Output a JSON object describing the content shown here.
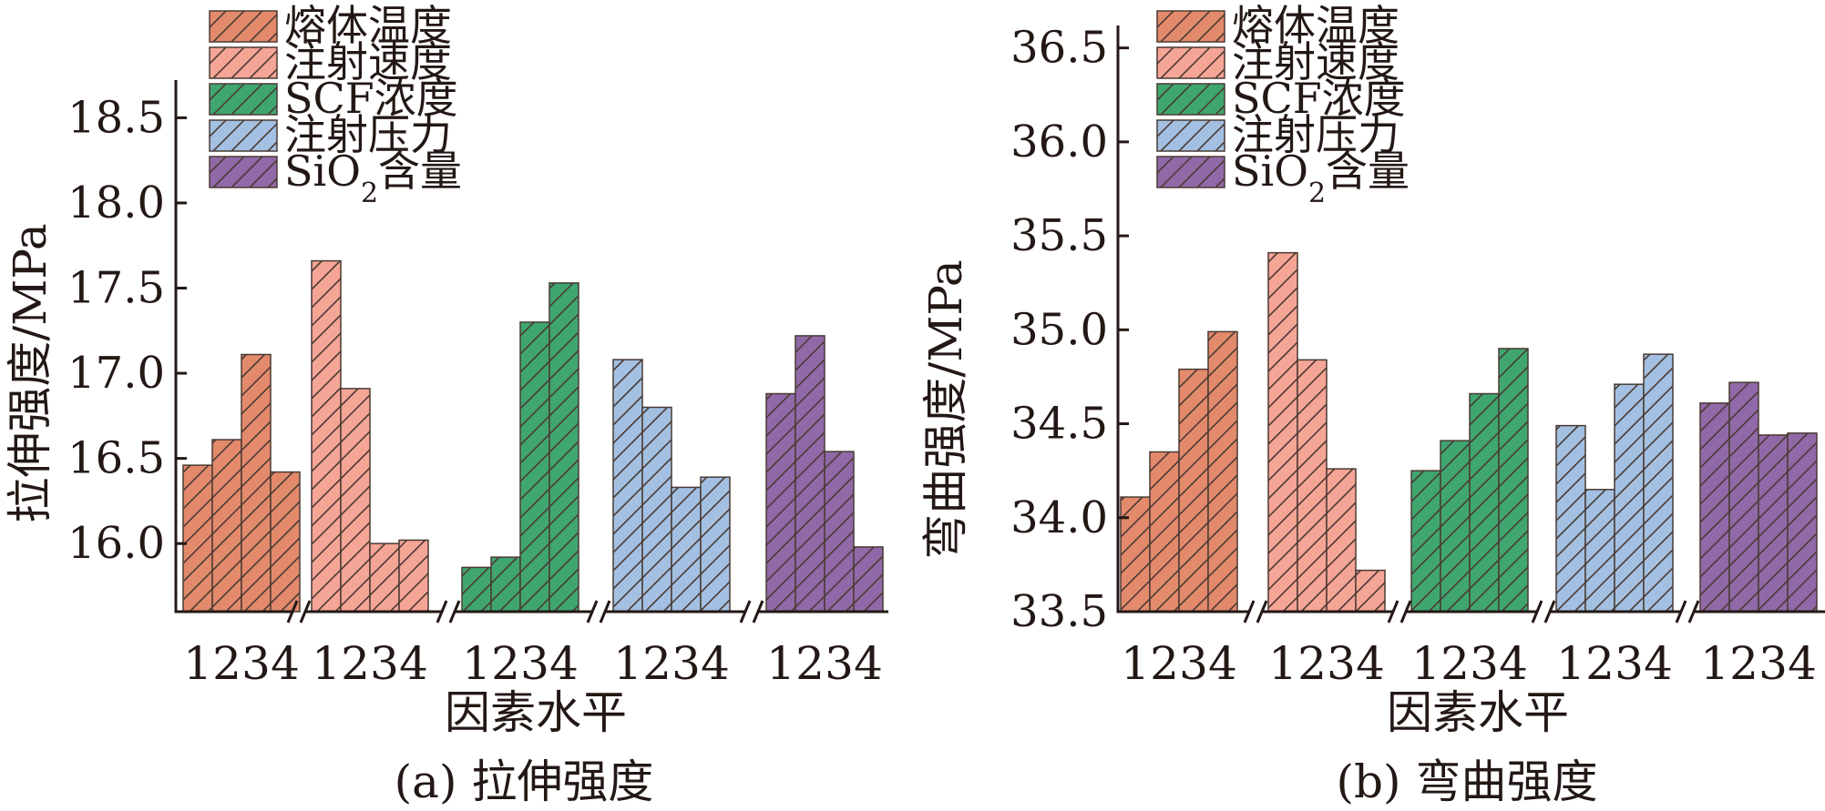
{
  "chart_data": [
    {
      "type": "bar",
      "caption": "(a) 拉伸强度",
      "xlabel": "因素水平",
      "ylabel": "拉伸强度/MPa",
      "ylim": [
        15.6,
        18.7
      ],
      "yticks": [
        "16.0",
        "16.5",
        "17.0",
        "17.5",
        "18.0",
        "18.5"
      ],
      "ytick_values": [
        16.0,
        16.5,
        17.0,
        17.5,
        18.0,
        18.5
      ],
      "level_labels": [
        "1",
        "2",
        "3",
        "4"
      ],
      "legend_position": "top-left",
      "series": [
        {
          "name": "熔体温度",
          "values": [
            16.46,
            16.61,
            17.11,
            16.42
          ]
        },
        {
          "name": "注射速度",
          "values": [
            17.66,
            16.91,
            16.0,
            16.02
          ]
        },
        {
          "name": "SCF浓度",
          "values": [
            15.86,
            15.92,
            17.3,
            17.53
          ]
        },
        {
          "name": "注射压力",
          "values": [
            17.08,
            16.8,
            16.33,
            16.39
          ]
        },
        {
          "name": "SiO2含量",
          "values": [
            16.88,
            17.22,
            16.54,
            15.98
          ]
        }
      ]
    },
    {
      "type": "bar",
      "caption": "(b) 弯曲强度",
      "xlabel": "因素水平",
      "ylabel": "弯曲强度/MPa",
      "ylim": [
        33.5,
        36.6
      ],
      "yticks": [
        "33.5",
        "34.0",
        "34.5",
        "35.0",
        "35.5",
        "36.0",
        "36.5"
      ],
      "ytick_values": [
        33.5,
        34.0,
        34.5,
        35.0,
        35.5,
        36.0,
        36.5
      ],
      "level_labels": [
        "1",
        "2",
        "3",
        "4"
      ],
      "legend_position": "top-left",
      "series": [
        {
          "name": "熔体温度",
          "values": [
            34.11,
            34.35,
            34.79,
            34.99
          ]
        },
        {
          "name": "注射速度",
          "values": [
            35.41,
            34.84,
            34.26,
            33.72
          ]
        },
        {
          "name": "SCF浓度",
          "values": [
            34.25,
            34.41,
            34.66,
            34.9
          ]
        },
        {
          "name": "注射压力",
          "values": [
            34.49,
            34.15,
            34.71,
            34.87
          ]
        },
        {
          "name": "SiO2含量",
          "values": [
            34.61,
            34.72,
            34.44,
            34.45
          ]
        }
      ]
    }
  ],
  "colors": {
    "fills": [
      "#e38a6c",
      "#f5a596",
      "#3fa66f",
      "#a3c0e2",
      "#9169a8"
    ],
    "hatch": "#4a3a33",
    "ink": "#231815"
  }
}
